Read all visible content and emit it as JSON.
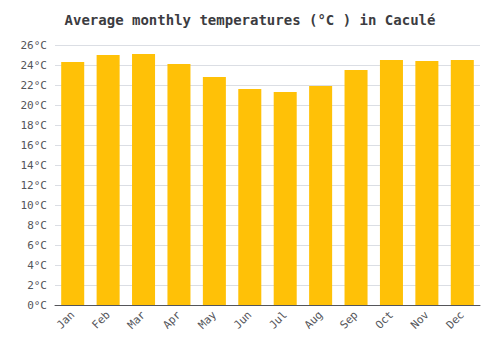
{
  "chart_data": {
    "type": "bar",
    "title": "Average monthly temperatures (°C ) in Caculé",
    "categories": [
      "Jan",
      "Feb",
      "Mar",
      "Apr",
      "May",
      "Jun",
      "Jul",
      "Aug",
      "Sep",
      "Oct",
      "Nov",
      "Dec"
    ],
    "values": [
      24.3,
      25.0,
      25.1,
      24.1,
      22.8,
      21.6,
      21.3,
      21.9,
      23.5,
      24.5,
      24.4,
      24.5
    ],
    "color": "#FFC107",
    "ylim": [
      0,
      26
    ],
    "yticks": [
      {
        "value": 0,
        "label": "0°C"
      },
      {
        "value": 2,
        "label": "2°C"
      },
      {
        "value": 4,
        "label": "4°C"
      },
      {
        "value": 6,
        "label": "6°C"
      },
      {
        "value": 8,
        "label": "8°C"
      },
      {
        "value": 10,
        "label": "10°C"
      },
      {
        "value": 12,
        "label": "12°C"
      },
      {
        "value": 14,
        "label": "14°C"
      },
      {
        "value": 16,
        "label": "16°C"
      },
      {
        "value": 18,
        "label": "18°C"
      },
      {
        "value": 20,
        "label": "20°C"
      },
      {
        "value": 22,
        "label": "22°C"
      },
      {
        "value": 24,
        "label": "24°C"
      },
      {
        "value": 26,
        "label": "26°C"
      }
    ],
    "grid": true
  }
}
